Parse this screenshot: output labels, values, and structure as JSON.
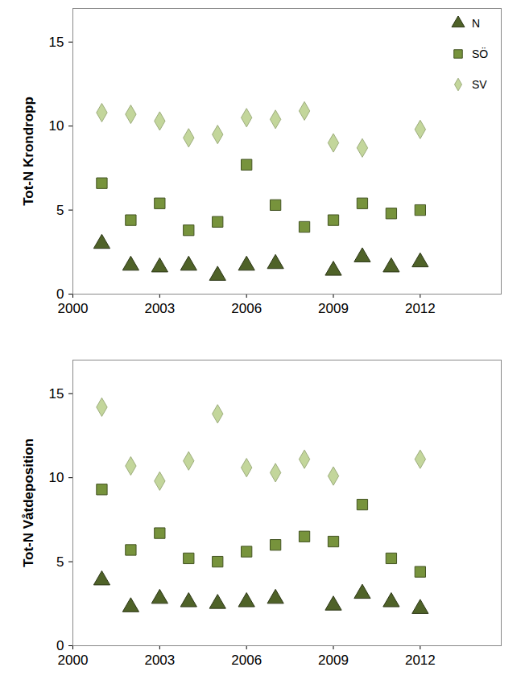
{
  "chart_data": [
    {
      "type": "scatter",
      "y_label": "Tot-N Krondropp",
      "x": [
        2001,
        2002,
        2003,
        2004,
        2005,
        2006,
        2007,
        2008,
        2009,
        2010,
        2011,
        2012
      ],
      "xlim": [
        2000,
        2014.8
      ],
      "xticks": [
        2000,
        2003,
        2006,
        2009,
        2012
      ],
      "ylim": [
        0,
        17
      ],
      "yticks": [
        0,
        5,
        10,
        15
      ],
      "legend": "upper right",
      "series": [
        {
          "name": "N",
          "color": "#4f6228",
          "marker": "triangle",
          "values": [
            3.0,
            1.7,
            1.6,
            1.7,
            1.1,
            1.7,
            1.8,
            null,
            1.4,
            2.2,
            1.6,
            1.9
          ]
        },
        {
          "name": "SÖ",
          "color": "#77933c",
          "marker": "square",
          "values": [
            6.6,
            4.4,
            5.4,
            3.8,
            4.3,
            7.7,
            5.3,
            4.0,
            4.4,
            5.4,
            4.8,
            5.0
          ]
        },
        {
          "name": "SV",
          "color": "#c3d69b",
          "marker": "diamond",
          "values": [
            10.8,
            10.7,
            10.3,
            9.3,
            9.5,
            10.5,
            10.4,
            10.9,
            9.0,
            8.7,
            null,
            9.8
          ]
        }
      ]
    },
    {
      "type": "scatter",
      "y_label": "Tot-N Våtdeposition",
      "x": [
        2001,
        2002,
        2003,
        2004,
        2005,
        2006,
        2007,
        2008,
        2009,
        2010,
        2011,
        2012
      ],
      "xlim": [
        2000,
        2014.8
      ],
      "xticks": [
        2000,
        2003,
        2006,
        2009,
        2012
      ],
      "ylim": [
        0,
        17
      ],
      "yticks": [
        0,
        5,
        10,
        15
      ],
      "series": [
        {
          "name": "N",
          "color": "#4f6228",
          "marker": "triangle",
          "values": [
            3.9,
            2.3,
            2.8,
            2.6,
            2.5,
            2.6,
            2.8,
            null,
            2.4,
            3.1,
            2.6,
            2.2
          ]
        },
        {
          "name": "SÖ",
          "color": "#77933c",
          "marker": "square",
          "values": [
            9.3,
            5.7,
            6.7,
            5.2,
            5.0,
            5.6,
            6.0,
            6.5,
            6.2,
            8.4,
            5.2,
            4.4
          ]
        },
        {
          "name": "SV",
          "color": "#c3d69b",
          "marker": "diamond",
          "values": [
            14.2,
            10.7,
            9.8,
            11.0,
            13.8,
            10.6,
            10.3,
            11.1,
            10.1,
            null,
            null,
            11.1
          ]
        }
      ]
    }
  ]
}
